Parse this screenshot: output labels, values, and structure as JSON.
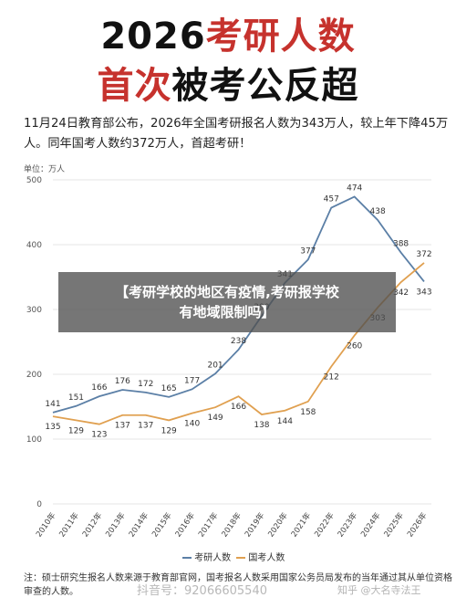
{
  "header": {
    "title_year": "2026",
    "title_red": "考研人数",
    "subtitle_red": "首次",
    "subtitle_black": "被考公反超"
  },
  "description": "11月24日教育部公布，2026年全国考研报名人数为343万人，较上年下降45万人。同年国考人数约372万人，首超考研！",
  "overlay": {
    "line1": "【考研学校的地区有疫情,考研报学校",
    "line2": "有地域限制吗】"
  },
  "note": "注：硕士研究生报名人数来源于教育部官网，国考报名人数采用国家公务员局发布的当年通过其从单位资格审查的人数。",
  "watermarks": {
    "douyin": "抖音号：92066605540",
    "zhihu": "知乎 @大名寺法王"
  },
  "colors": {
    "kaoyan": "#5b7fa6",
    "guokao": "#e0a050",
    "title_red": "#c6322d"
  },
  "chart_data": {
    "type": "line",
    "unit_label": "单位：万人",
    "categories": [
      "2010年",
      "2011年",
      "2012年",
      "2013年",
      "2014年",
      "2015年",
      "2016年",
      "2017年",
      "2018年",
      "2019年",
      "2020年",
      "2021年",
      "2022年",
      "2023年",
      "2024年",
      "2025年",
      "2026年"
    ],
    "ylim": [
      0,
      500
    ],
    "yticks": [
      0,
      100,
      200,
      300,
      400,
      500
    ],
    "legend_position": "bottom",
    "series": [
      {
        "name": "考研人数",
        "values": [
          141,
          151,
          166,
          176,
          172,
          165,
          177,
          201,
          238,
          290,
          341,
          377,
          457,
          474,
          438,
          388,
          343
        ]
      },
      {
        "name": "国考人数",
        "values": [
          135,
          129,
          123,
          137,
          137,
          129,
          140,
          149,
          166,
          138,
          144,
          158,
          212,
          260,
          303,
          342,
          372
        ]
      }
    ]
  }
}
